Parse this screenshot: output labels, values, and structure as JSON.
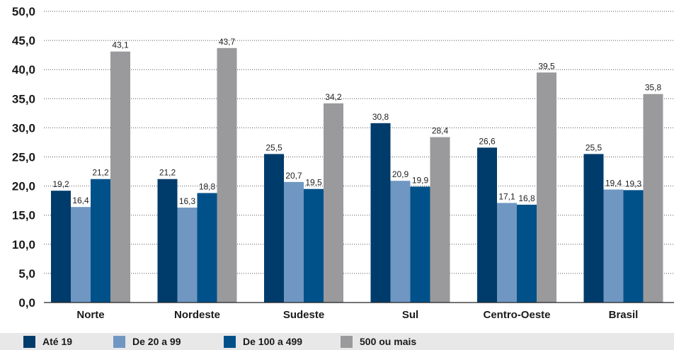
{
  "chart_data": {
    "type": "bar",
    "title": "",
    "xlabel": "",
    "ylabel": "",
    "ylim": [
      0,
      50
    ],
    "yticks": [
      "0,0",
      "5,0",
      "10,0",
      "15,0",
      "20,0",
      "25,0",
      "30,0",
      "35,0",
      "40,0",
      "45,0",
      "50,0"
    ],
    "grid": true,
    "legend_position": "bottom",
    "categories": [
      "Norte",
      "Nordeste",
      "Sudeste",
      "Sul",
      "Centro-Oeste",
      "Brasil"
    ],
    "series": [
      {
        "name": "Até 19",
        "color": "#003c6b",
        "values": [
          19.2,
          21.2,
          25.5,
          30.8,
          26.6,
          25.5
        ],
        "labels": [
          "19,2",
          "21,2",
          "25,5",
          "30,8",
          "26,6",
          "25,5"
        ]
      },
      {
        "name": "De 20 a 99",
        "color": "#6f97c2",
        "values": [
          16.4,
          16.3,
          20.7,
          20.9,
          17.1,
          19.4
        ],
        "labels": [
          "16,4",
          "16,3",
          "20,7",
          "20,9",
          "17,1",
          "19,4"
        ]
      },
      {
        "name": "De 100 a 499",
        "color": "#00518a",
        "values": [
          21.2,
          18.8,
          19.5,
          19.9,
          16.8,
          19.3
        ],
        "labels": [
          "21,2",
          "18,8",
          "19,5",
          "19,9",
          "16,8",
          "19,3"
        ]
      },
      {
        "name": "500 ou mais",
        "color": "#9a9a9d",
        "values": [
          43.1,
          43.7,
          34.2,
          28.4,
          39.5,
          35.8
        ],
        "labels": [
          "43,1",
          "43,7",
          "34,2",
          "28,4",
          "39,5",
          "35,8"
        ]
      }
    ]
  }
}
